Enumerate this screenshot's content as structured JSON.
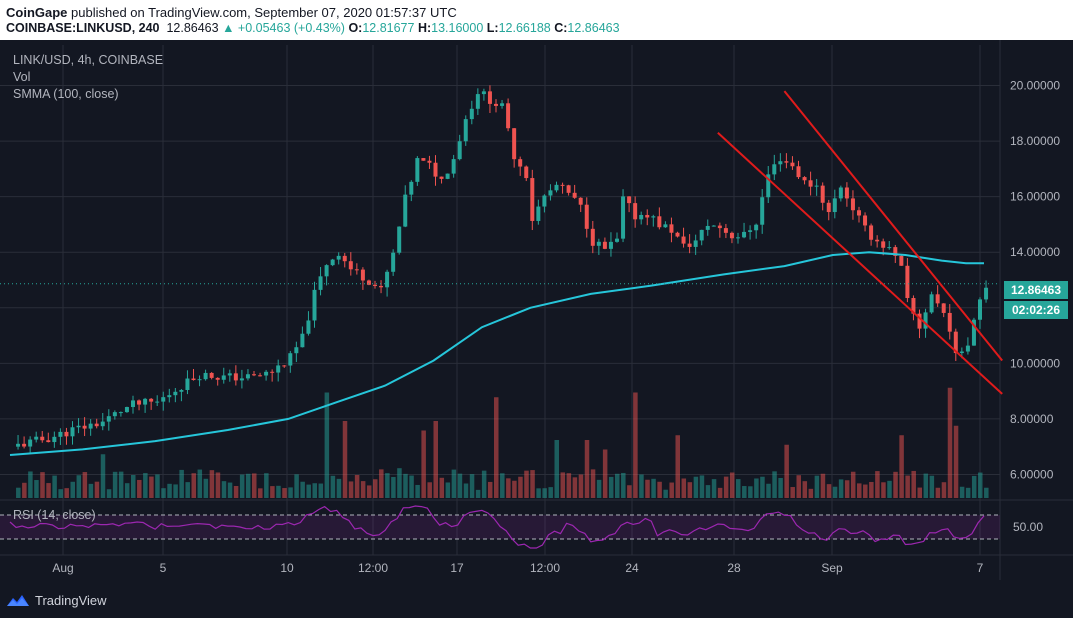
{
  "header": {
    "publisher": "CoinGape",
    "published_text": "published on TradingView.com, September 07, 2020 01:57:37 UTC",
    "symbol": "COINBASE:LINKUSD, 240",
    "last": "12.86463",
    "change": "▲ +0.05463 (+0.43%)",
    "o_label": "O:",
    "o_value": "12.81677",
    "h_label": "H:",
    "h_value": "13.16000",
    "l_label": "L:",
    "l_value": "12.66188",
    "c_label": "C:",
    "c_value": "12.86463"
  },
  "legend": {
    "title": "LINK/USD, 4h, COINBASE",
    "vol": "Vol",
    "smma": "SMMA (100, close)",
    "rsi": "RSI (14, close)"
  },
  "price_badge": {
    "price": "12.86463",
    "timer": "02:02:26"
  },
  "brand": {
    "name": "TradingView"
  },
  "colors": {
    "background": "#131722",
    "up": "#26a69a",
    "down": "#ef5350",
    "smma": "#26c6da",
    "channel": "#e01b1b",
    "rsi": "#9c27b0",
    "grid": "#2a2e39",
    "text": "#b2b5be"
  },
  "chart_data": {
    "type": "candlestick",
    "title": "LINK/USD, 4h, COINBASE",
    "y_ticks": [
      "20.00000",
      "18.00000",
      "16.00000",
      "14.00000",
      "10.00000",
      "8.00000",
      "6.00000"
    ],
    "ylim": [
      5.4,
      21.2
    ],
    "x_ticks": [
      "Aug",
      "5",
      "10",
      "12:00",
      "17",
      "12:00",
      "24",
      "28",
      "Sep",
      "7"
    ],
    "rsi_ticks": [
      "50.00"
    ],
    "last_price": 12.86463,
    "close_path": [
      [
        0,
        7.0
      ],
      [
        6,
        7.3
      ],
      [
        10,
        7.6
      ],
      [
        15,
        7.9
      ],
      [
        18,
        8.3
      ],
      [
        20,
        8.5
      ],
      [
        24,
        8.6
      ],
      [
        28,
        9.2
      ],
      [
        31,
        9.6
      ],
      [
        35,
        9.5
      ],
      [
        40,
        9.5
      ],
      [
        43,
        9.7
      ],
      [
        46,
        10.2
      ],
      [
        48,
        10.9
      ],
      [
        50,
        12.5
      ],
      [
        52,
        13.6
      ],
      [
        54,
        14.0
      ],
      [
        56,
        13.4
      ],
      [
        59,
        13.0
      ],
      [
        61,
        12.6
      ],
      [
        63,
        13.9
      ],
      [
        65,
        15.9
      ],
      [
        67,
        17.3
      ],
      [
        69,
        17.1
      ],
      [
        71,
        16.6
      ],
      [
        73,
        17.4
      ],
      [
        75,
        18.8
      ],
      [
        77,
        19.8
      ],
      [
        79,
        19.5
      ],
      [
        81,
        19.2
      ],
      [
        83,
        17.5
      ],
      [
        85,
        16.8
      ],
      [
        86,
        15.2
      ],
      [
        88,
        16.0
      ],
      [
        90,
        16.4
      ],
      [
        92,
        16.1
      ],
      [
        94,
        15.6
      ],
      [
        96,
        14.4
      ],
      [
        98,
        14.1
      ],
      [
        100,
        14.4
      ],
      [
        101,
        15.9
      ],
      [
        103,
        15.3
      ],
      [
        105,
        15.4
      ],
      [
        107,
        15.0
      ],
      [
        109,
        14.8
      ],
      [
        111,
        14.2
      ],
      [
        113,
        14.4
      ],
      [
        115,
        15.0
      ],
      [
        117,
        14.9
      ],
      [
        119,
        14.6
      ],
      [
        121,
        14.6
      ],
      [
        123,
        15.1
      ],
      [
        125,
        16.8
      ],
      [
        127,
        17.4
      ],
      [
        129,
        17.1
      ],
      [
        131,
        16.5
      ],
      [
        133,
        16.4
      ],
      [
        135,
        15.4
      ],
      [
        137,
        16.4
      ],
      [
        139,
        15.6
      ],
      [
        141,
        14.8
      ],
      [
        143,
        14.4
      ],
      [
        145,
        14.1
      ],
      [
        147,
        13.4
      ],
      [
        148,
        12.2
      ],
      [
        150,
        11.3
      ],
      [
        152,
        12.5
      ],
      [
        154,
        11.8
      ],
      [
        155,
        11.3
      ],
      [
        156,
        10.2
      ],
      [
        157,
        10.5
      ],
      [
        158,
        10.8
      ],
      [
        159,
        11.6
      ],
      [
        160,
        12.4
      ],
      [
        161,
        12.86
      ]
    ],
    "smma_path": [
      [
        0,
        6.7
      ],
      [
        12,
        6.9
      ],
      [
        24,
        7.2
      ],
      [
        36,
        7.6
      ],
      [
        46,
        8.0
      ],
      [
        54,
        8.6
      ],
      [
        62,
        9.2
      ],
      [
        70,
        10.1
      ],
      [
        78,
        11.3
      ],
      [
        86,
        12.0
      ],
      [
        96,
        12.5
      ],
      [
        106,
        12.8
      ],
      [
        118,
        13.2
      ],
      [
        128,
        13.5
      ],
      [
        136,
        13.9
      ],
      [
        142,
        14.0
      ],
      [
        148,
        13.9
      ],
      [
        154,
        13.7
      ],
      [
        158,
        13.6
      ],
      [
        161,
        13.6
      ]
    ],
    "channel_lines": [
      {
        "from": [
          117,
          18.3
        ],
        "to": [
          164,
          8.9
        ]
      },
      {
        "from": [
          128,
          19.8
        ],
        "to": [
          164,
          10.1
        ]
      }
    ]
  }
}
